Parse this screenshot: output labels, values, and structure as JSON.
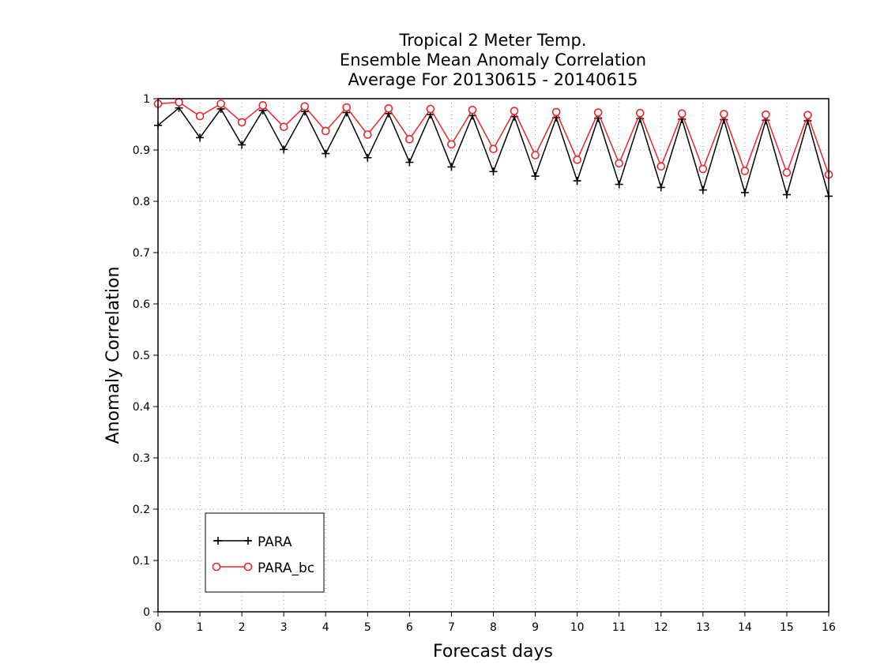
{
  "chart_data": {
    "type": "line",
    "title": [
      "Tropical 2 Meter Temp.",
      "Ensemble Mean Anomaly Correlation",
      "Average For 20130615 - 20140615"
    ],
    "xlabel": "Forecast days",
    "ylabel": "Anomaly Correlation",
    "xlim": [
      0,
      16
    ],
    "ylim": [
      0,
      1
    ],
    "x_ticks": [
      "0",
      "1",
      "2",
      "3",
      "4",
      "5",
      "6",
      "7",
      "8",
      "9",
      "10",
      "11",
      "12",
      "13",
      "14",
      "15",
      "16"
    ],
    "y_ticks": [
      "0",
      "0.1",
      "0.2",
      "0.3",
      "0.4",
      "0.5",
      "0.6",
      "0.7",
      "0.8",
      "0.9",
      "1"
    ],
    "grid": true,
    "legend_position": "bottom-left",
    "x": [
      0,
      0.5,
      1,
      1.5,
      2,
      2.5,
      3,
      3.5,
      4,
      4.5,
      5,
      5.5,
      6,
      6.5,
      7,
      7.5,
      8,
      8.5,
      9,
      9.5,
      10,
      10.5,
      11,
      11.5,
      12,
      12.5,
      13,
      13.5,
      14,
      14.5,
      15,
      15.5,
      16
    ],
    "series": [
      {
        "name": "PARA",
        "color": "#000000",
        "marker": "plus",
        "values": [
          0.948,
          0.982,
          0.924,
          0.98,
          0.91,
          0.977,
          0.901,
          0.975,
          0.893,
          0.973,
          0.885,
          0.971,
          0.876,
          0.969,
          0.867,
          0.967,
          0.858,
          0.965,
          0.849,
          0.963,
          0.84,
          0.962,
          0.833,
          0.961,
          0.827,
          0.96,
          0.822,
          0.959,
          0.817,
          0.958,
          0.813,
          0.957,
          0.81
        ]
      },
      {
        "name": "PARA_bc",
        "color": "#e8262b",
        "marker": "circle",
        "values": [
          0.99,
          0.993,
          0.966,
          0.99,
          0.954,
          0.987,
          0.945,
          0.985,
          0.937,
          0.983,
          0.93,
          0.981,
          0.921,
          0.98,
          0.911,
          0.978,
          0.902,
          0.976,
          0.89,
          0.974,
          0.881,
          0.973,
          0.874,
          0.972,
          0.868,
          0.971,
          0.863,
          0.97,
          0.859,
          0.969,
          0.856,
          0.968,
          0.852
        ]
      }
    ]
  }
}
